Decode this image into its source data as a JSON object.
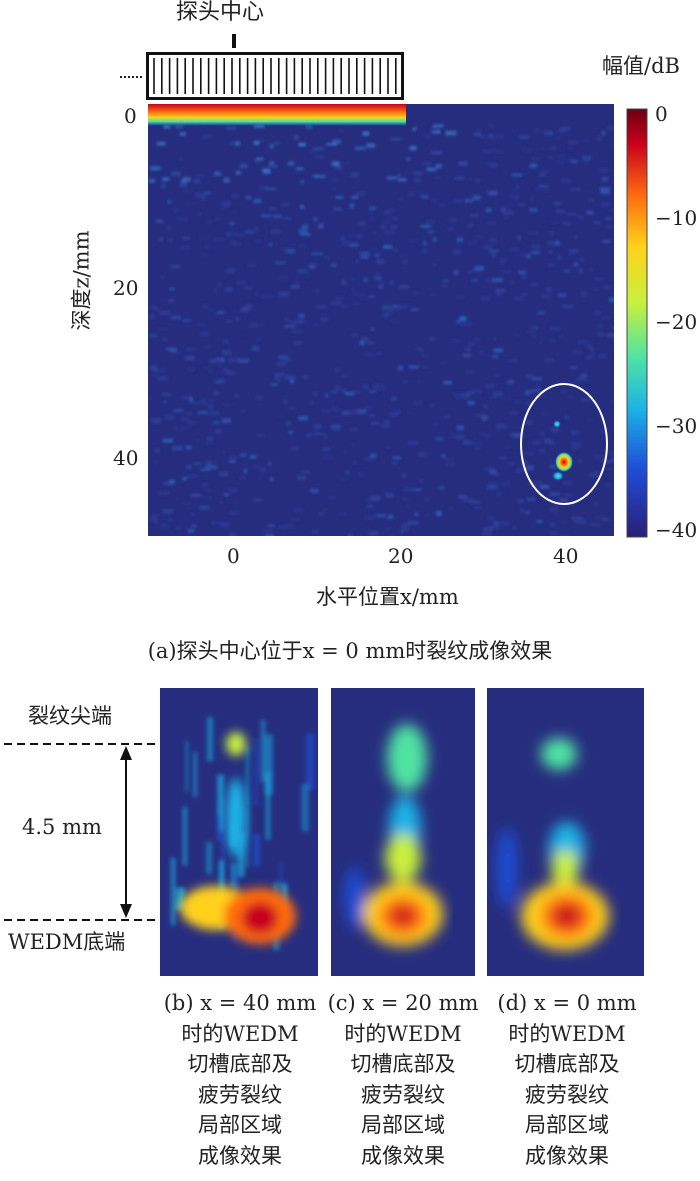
{
  "panel_a": {
    "probe_label": "探头中心",
    "colorbar_title": "幅值/dB",
    "colorbar_ticks": [
      "0",
      "−10",
      "−20",
      "−30",
      "−40"
    ],
    "y_ticks": [
      "0",
      "20",
      "40"
    ],
    "x_ticks": [
      "0",
      "20",
      "40"
    ],
    "ylabel": "深度z/mm",
    "xlabel": "水平位置x/mm",
    "caption": "(a)探头中心位于x = 0 mm时裂纹成像效果"
  },
  "detail": {
    "tip_label": "裂纹尖端",
    "distance_label": "4.5 mm",
    "bottom_label": "WEDM底端"
  },
  "captions": {
    "b": [
      "(b) x = 40 mm",
      "时的WEDM",
      "切槽底部及",
      "疲劳裂纹",
      "局部区域",
      "成像效果"
    ],
    "c": [
      "(c) x = 20 mm",
      "时的WEDM",
      "切槽底部及",
      "疲劳裂纹",
      "局部区域",
      "成像效果"
    ],
    "d": [
      "(d) x = 0 mm",
      "时的WEDM",
      "切槽底部及",
      "疲劳裂纹",
      "局部区域",
      "成像效果"
    ]
  },
  "colors": {
    "background_blue": "#262d7e",
    "colormap": [
      "#2a1f78",
      "#1f4ed8",
      "#1bb3e6",
      "#4fe3a3",
      "#c9f03c",
      "#ffd11a",
      "#ff6a10",
      "#c8001d",
      "#6a0010"
    ]
  }
}
